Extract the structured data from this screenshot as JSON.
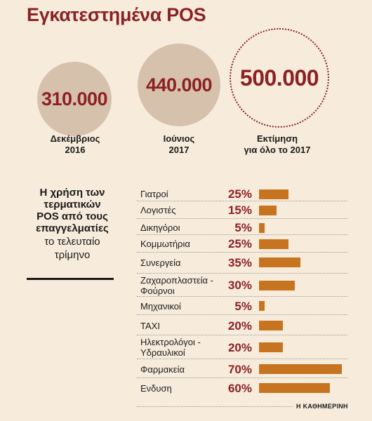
{
  "title": "Εγκατεστημένα POS",
  "installed": [
    {
      "value": "310.000",
      "label_l1": "Δεκέμβριος",
      "label_l2": "2016"
    },
    {
      "value": "440.000",
      "label_l1": "Ιούνιος",
      "label_l2": "2017"
    },
    {
      "value": "500.000",
      "label_l1": "Εκτίμηση",
      "label_l2": "για όλο το 2017"
    }
  ],
  "subtitle": {
    "bold": [
      "Η χρήση των",
      "τερματικών",
      "POS από τους",
      "επαγγελματίες"
    ],
    "regular": [
      "το τελευταίο",
      "τρίμηνο"
    ]
  },
  "chart_data": {
    "type": "bar",
    "title": "Εγκατεστημένα POS",
    "categories": [
      [
        "Γιατροί"
      ],
      [
        "Λογιστές"
      ],
      [
        "Δικηγόροι"
      ],
      [
        "Κομμωτήρια"
      ],
      [
        "Συνεργεία"
      ],
      [
        "Ζαχαροπλαστεία -",
        "Φούρνοι"
      ],
      [
        "Μηχανικοί"
      ],
      [
        "ΤΑΧΙ"
      ],
      [
        "Ηλεκτρολόγοι -",
        "Υδραυλικοί"
      ],
      [
        "Φαρμακεία"
      ],
      [
        "Ενδυση"
      ]
    ],
    "values": [
      25,
      15,
      5,
      25,
      35,
      30,
      5,
      20,
      20,
      70,
      60
    ],
    "value_labels": [
      "25%",
      "15%",
      "5%",
      "25%",
      "35%",
      "30%",
      "5%",
      "20%",
      "20%",
      "70%",
      "60%"
    ],
    "unit": "%",
    "bar_color": "#c77420",
    "label_color": "#8c2125",
    "orientation": "horizontal"
  },
  "source": "Η ΚΑΘΗΜΕΡΙΝΗ",
  "colors": {
    "background": "#f7ecdc",
    "accent": "#8c2125",
    "circle_fill": "#d6c1ad",
    "bar": "#c77420"
  }
}
